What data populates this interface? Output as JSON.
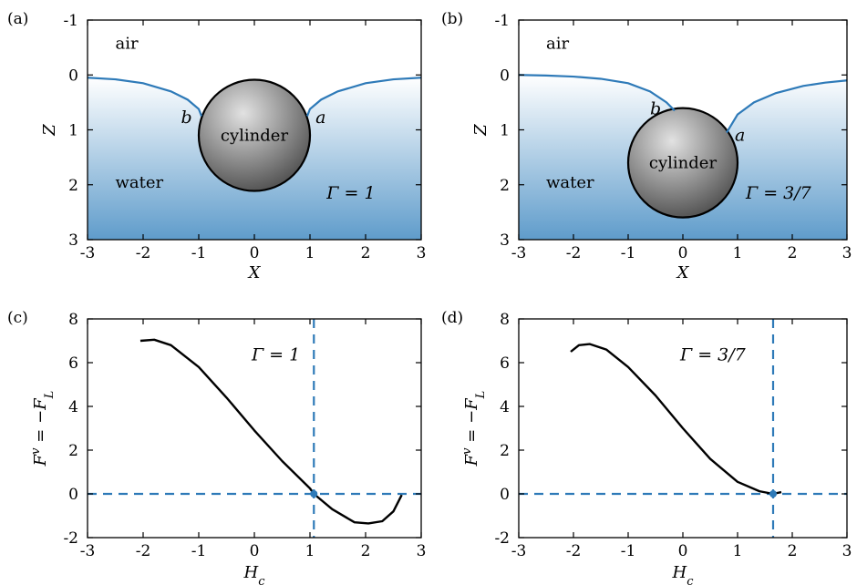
{
  "chart_data": [
    {
      "panel": "(a)",
      "type": "line",
      "xlabel": "X",
      "ylabel": "Z",
      "xlim": [
        -3,
        3
      ],
      "ylim": [
        -1,
        3
      ],
      "y_inverted": true,
      "xticks": [
        "-3",
        "-2",
        "-1",
        "0",
        "1",
        "2",
        "3"
      ],
      "yticks": [
        "-1",
        "0",
        "1",
        "2",
        "3"
      ],
      "annotations": {
        "air": "air",
        "water": "water",
        "cylinder": "cylinder",
        "a": "a",
        "b": "b",
        "gamma": "Γ = 1"
      },
      "cylinder": {
        "center": [
          0,
          1.1
        ],
        "radius": 1.0
      },
      "series": [
        {
          "x": [
            -3,
            -2.5,
            -2,
            -1.5,
            -1.2,
            -1.0,
            -0.95
          ],
          "values": [
            0.05,
            0.08,
            0.15,
            0.3,
            0.45,
            0.62,
            0.75
          ]
        },
        {
          "x": [
            0.95,
            1.0,
            1.2,
            1.5,
            2,
            2.5,
            3
          ],
          "values": [
            0.75,
            0.62,
            0.45,
            0.3,
            0.15,
            0.08,
            0.05
          ]
        }
      ]
    },
    {
      "panel": "(b)",
      "type": "line",
      "xlabel": "X",
      "ylabel": "Z",
      "xlim": [
        -3,
        3
      ],
      "ylim": [
        -1,
        3
      ],
      "y_inverted": true,
      "xticks": [
        "-3",
        "-2",
        "-1",
        "0",
        "1",
        "2",
        "3"
      ],
      "yticks": [
        "-1",
        "0",
        "1",
        "2",
        "3"
      ],
      "annotations": {
        "air": "air",
        "water": "water",
        "cylinder": "cylinder",
        "a": "a",
        "b": "b",
        "gamma": "Γ = 3/7"
      },
      "cylinder": {
        "center": [
          0,
          1.6
        ],
        "radius": 1.0
      },
      "series": [
        {
          "x": [
            -3,
            -2.5,
            -2,
            -1.5,
            -1.0,
            -0.6,
            -0.3,
            -0.15
          ],
          "values": [
            0.0,
            0.01,
            0.03,
            0.07,
            0.15,
            0.3,
            0.5,
            0.65
          ]
        },
        {
          "x": [
            0.8,
            1.0,
            1.3,
            1.7,
            2.2,
            2.6,
            3
          ],
          "values": [
            1.05,
            0.72,
            0.5,
            0.33,
            0.2,
            0.14,
            0.1
          ]
        }
      ]
    },
    {
      "panel": "(c)",
      "type": "line",
      "xlabel": "H_c",
      "ylabel": "F^v = −F_L",
      "xlim": [
        -3,
        3
      ],
      "ylim": [
        -2,
        8
      ],
      "xticks": [
        "-3",
        "-2",
        "-1",
        "0",
        "1",
        "2",
        "3"
      ],
      "yticks": [
        "-2",
        "0",
        "2",
        "4",
        "6",
        "8"
      ],
      "annotations": {
        "gamma": "Γ = 1"
      },
      "equilibrium": {
        "x": 1.07,
        "y": 0
      },
      "series": [
        {
          "x": [
            -2.05,
            -1.8,
            -1.5,
            -1.0,
            -0.5,
            0,
            0.5,
            1.0,
            1.07,
            1.4,
            1.8,
            2.05,
            2.3,
            2.5,
            2.65
          ],
          "values": [
            7.0,
            7.05,
            6.8,
            5.8,
            4.4,
            2.9,
            1.5,
            0.25,
            0.0,
            -0.7,
            -1.3,
            -1.35,
            -1.25,
            -0.8,
            -0.05
          ]
        }
      ]
    },
    {
      "panel": "(d)",
      "type": "line",
      "xlabel": "H_c",
      "ylabel": "F^v = −F_L",
      "xlim": [
        -3,
        3
      ],
      "ylim": [
        -2,
        8
      ],
      "xticks": [
        "-3",
        "-2",
        "-1",
        "0",
        "1",
        "2",
        "3"
      ],
      "yticks": [
        "-2",
        "0",
        "2",
        "4",
        "6",
        "8"
      ],
      "annotations": {
        "gamma": "Γ = 3/7"
      },
      "equilibrium": {
        "x": 1.65,
        "y": 0
      },
      "series": [
        {
          "x": [
            -2.05,
            -1.9,
            -1.7,
            -1.4,
            -1.0,
            -0.5,
            0,
            0.5,
            1.0,
            1.4,
            1.65,
            1.8
          ],
          "values": [
            6.5,
            6.8,
            6.85,
            6.6,
            5.8,
            4.5,
            3.0,
            1.6,
            0.55,
            0.12,
            0.0,
            0.08
          ]
        }
      ]
    }
  ]
}
